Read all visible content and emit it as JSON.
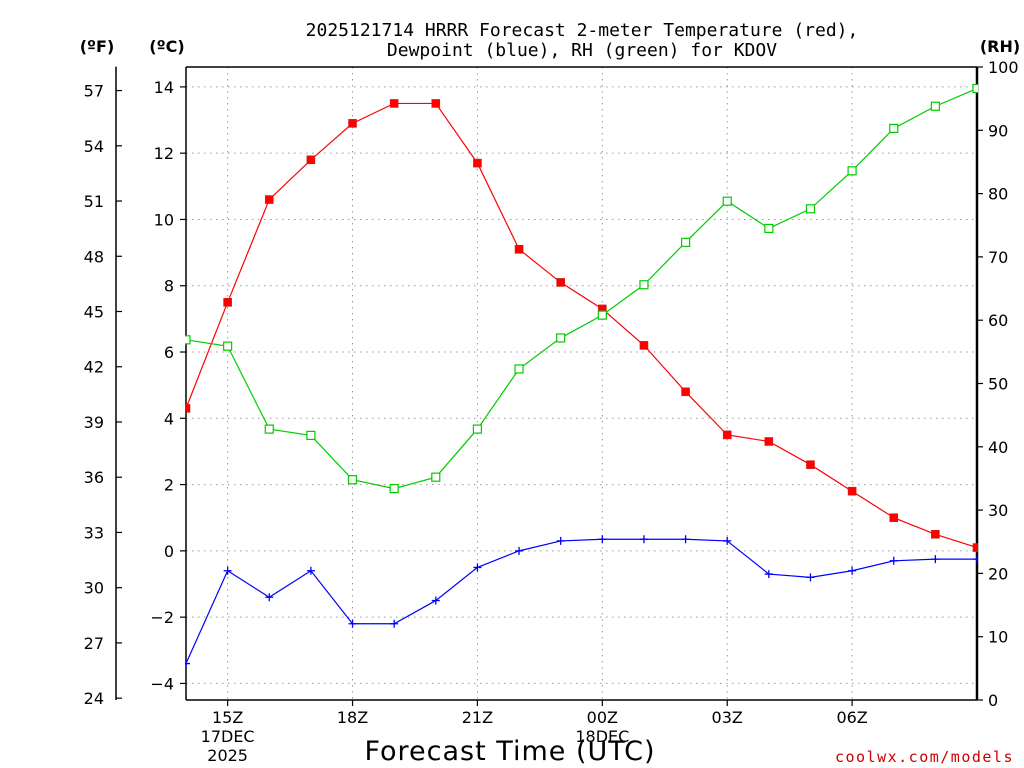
{
  "chart_data": {
    "type": "line",
    "title_line1": "2025121714 HRRR Forecast 2-meter Temperature (red),",
    "title_line2": "Dewpoint (blue), RH (green) for KDOV",
    "xlabel": "Forecast Time (UTC)",
    "watermark": "coolwx.com/models",
    "unit_labels": {
      "fahrenheit": "(ºF)",
      "celsius": "(ºC)",
      "rh": "(RH)"
    },
    "forecast_hours": [
      14,
      15,
      16,
      17,
      18,
      19,
      20,
      21,
      22,
      23,
      24,
      25,
      26,
      27,
      28,
      29,
      30,
      31,
      32,
      33
    ],
    "x_ticks": [
      {
        "hour": 15,
        "label": "15Z",
        "sub1": "17DEC",
        "sub2": "2025"
      },
      {
        "hour": 18,
        "label": "18Z",
        "sub1": "",
        "sub2": ""
      },
      {
        "hour": 21,
        "label": "21Z",
        "sub1": "",
        "sub2": ""
      },
      {
        "hour": 24,
        "label": "00Z",
        "sub1": "18DEC",
        "sub2": ""
      },
      {
        "hour": 27,
        "label": "03Z",
        "sub1": "",
        "sub2": ""
      },
      {
        "hour": 30,
        "label": "06Z",
        "sub1": "",
        "sub2": ""
      }
    ],
    "xlim": [
      14,
      33
    ],
    "celsius_axis": {
      "ylim": [
        -4.5,
        14.6
      ],
      "ticks": [
        -4,
        -2,
        0,
        2,
        4,
        6,
        8,
        10,
        12,
        14
      ],
      "tick_labels": [
        "−4",
        "−2",
        "0",
        "2",
        "4",
        "6",
        "8",
        "10",
        "12",
        "14"
      ]
    },
    "fahrenheit_axis": {
      "ticks": [
        24,
        27,
        30,
        33,
        36,
        39,
        42,
        45,
        48,
        51,
        54,
        57
      ]
    },
    "rh_axis": {
      "ylim": [
        0,
        100
      ],
      "ticks": [
        0,
        10,
        20,
        30,
        40,
        50,
        60,
        70,
        80,
        90,
        100
      ]
    },
    "series": [
      {
        "name": "Temperature",
        "axis": "celsius",
        "color": "#ff0000",
        "marker": "filled-square",
        "values": [
          4.3,
          7.5,
          10.6,
          11.8,
          12.9,
          13.5,
          13.5,
          11.7,
          9.1,
          8.1,
          7.3,
          6.2,
          4.8,
          3.5,
          3.3,
          2.6,
          1.8,
          1.0,
          0.5,
          0.1
        ]
      },
      {
        "name": "Dewpoint",
        "axis": "celsius",
        "color": "#0000ff",
        "marker": "plus",
        "values": [
          -3.4,
          -0.6,
          -1.4,
          -0.6,
          -2.2,
          -2.2,
          -1.5,
          -0.5,
          0.0,
          0.3,
          0.35,
          0.35,
          0.35,
          0.3,
          -0.7,
          -0.8,
          -0.6,
          -0.3,
          -0.25,
          -0.25
        ]
      },
      {
        "name": "Relative Humidity",
        "axis": "rh",
        "color": "#00cc00",
        "marker": "open-square",
        "values": [
          56.9,
          55.9,
          42.8,
          41.8,
          34.8,
          33.4,
          35.2,
          42.8,
          52.3,
          57.2,
          60.8,
          65.6,
          72.3,
          78.8,
          74.5,
          77.6,
          83.6,
          90.3,
          93.8,
          96.6
        ]
      }
    ],
    "grid": true
  }
}
